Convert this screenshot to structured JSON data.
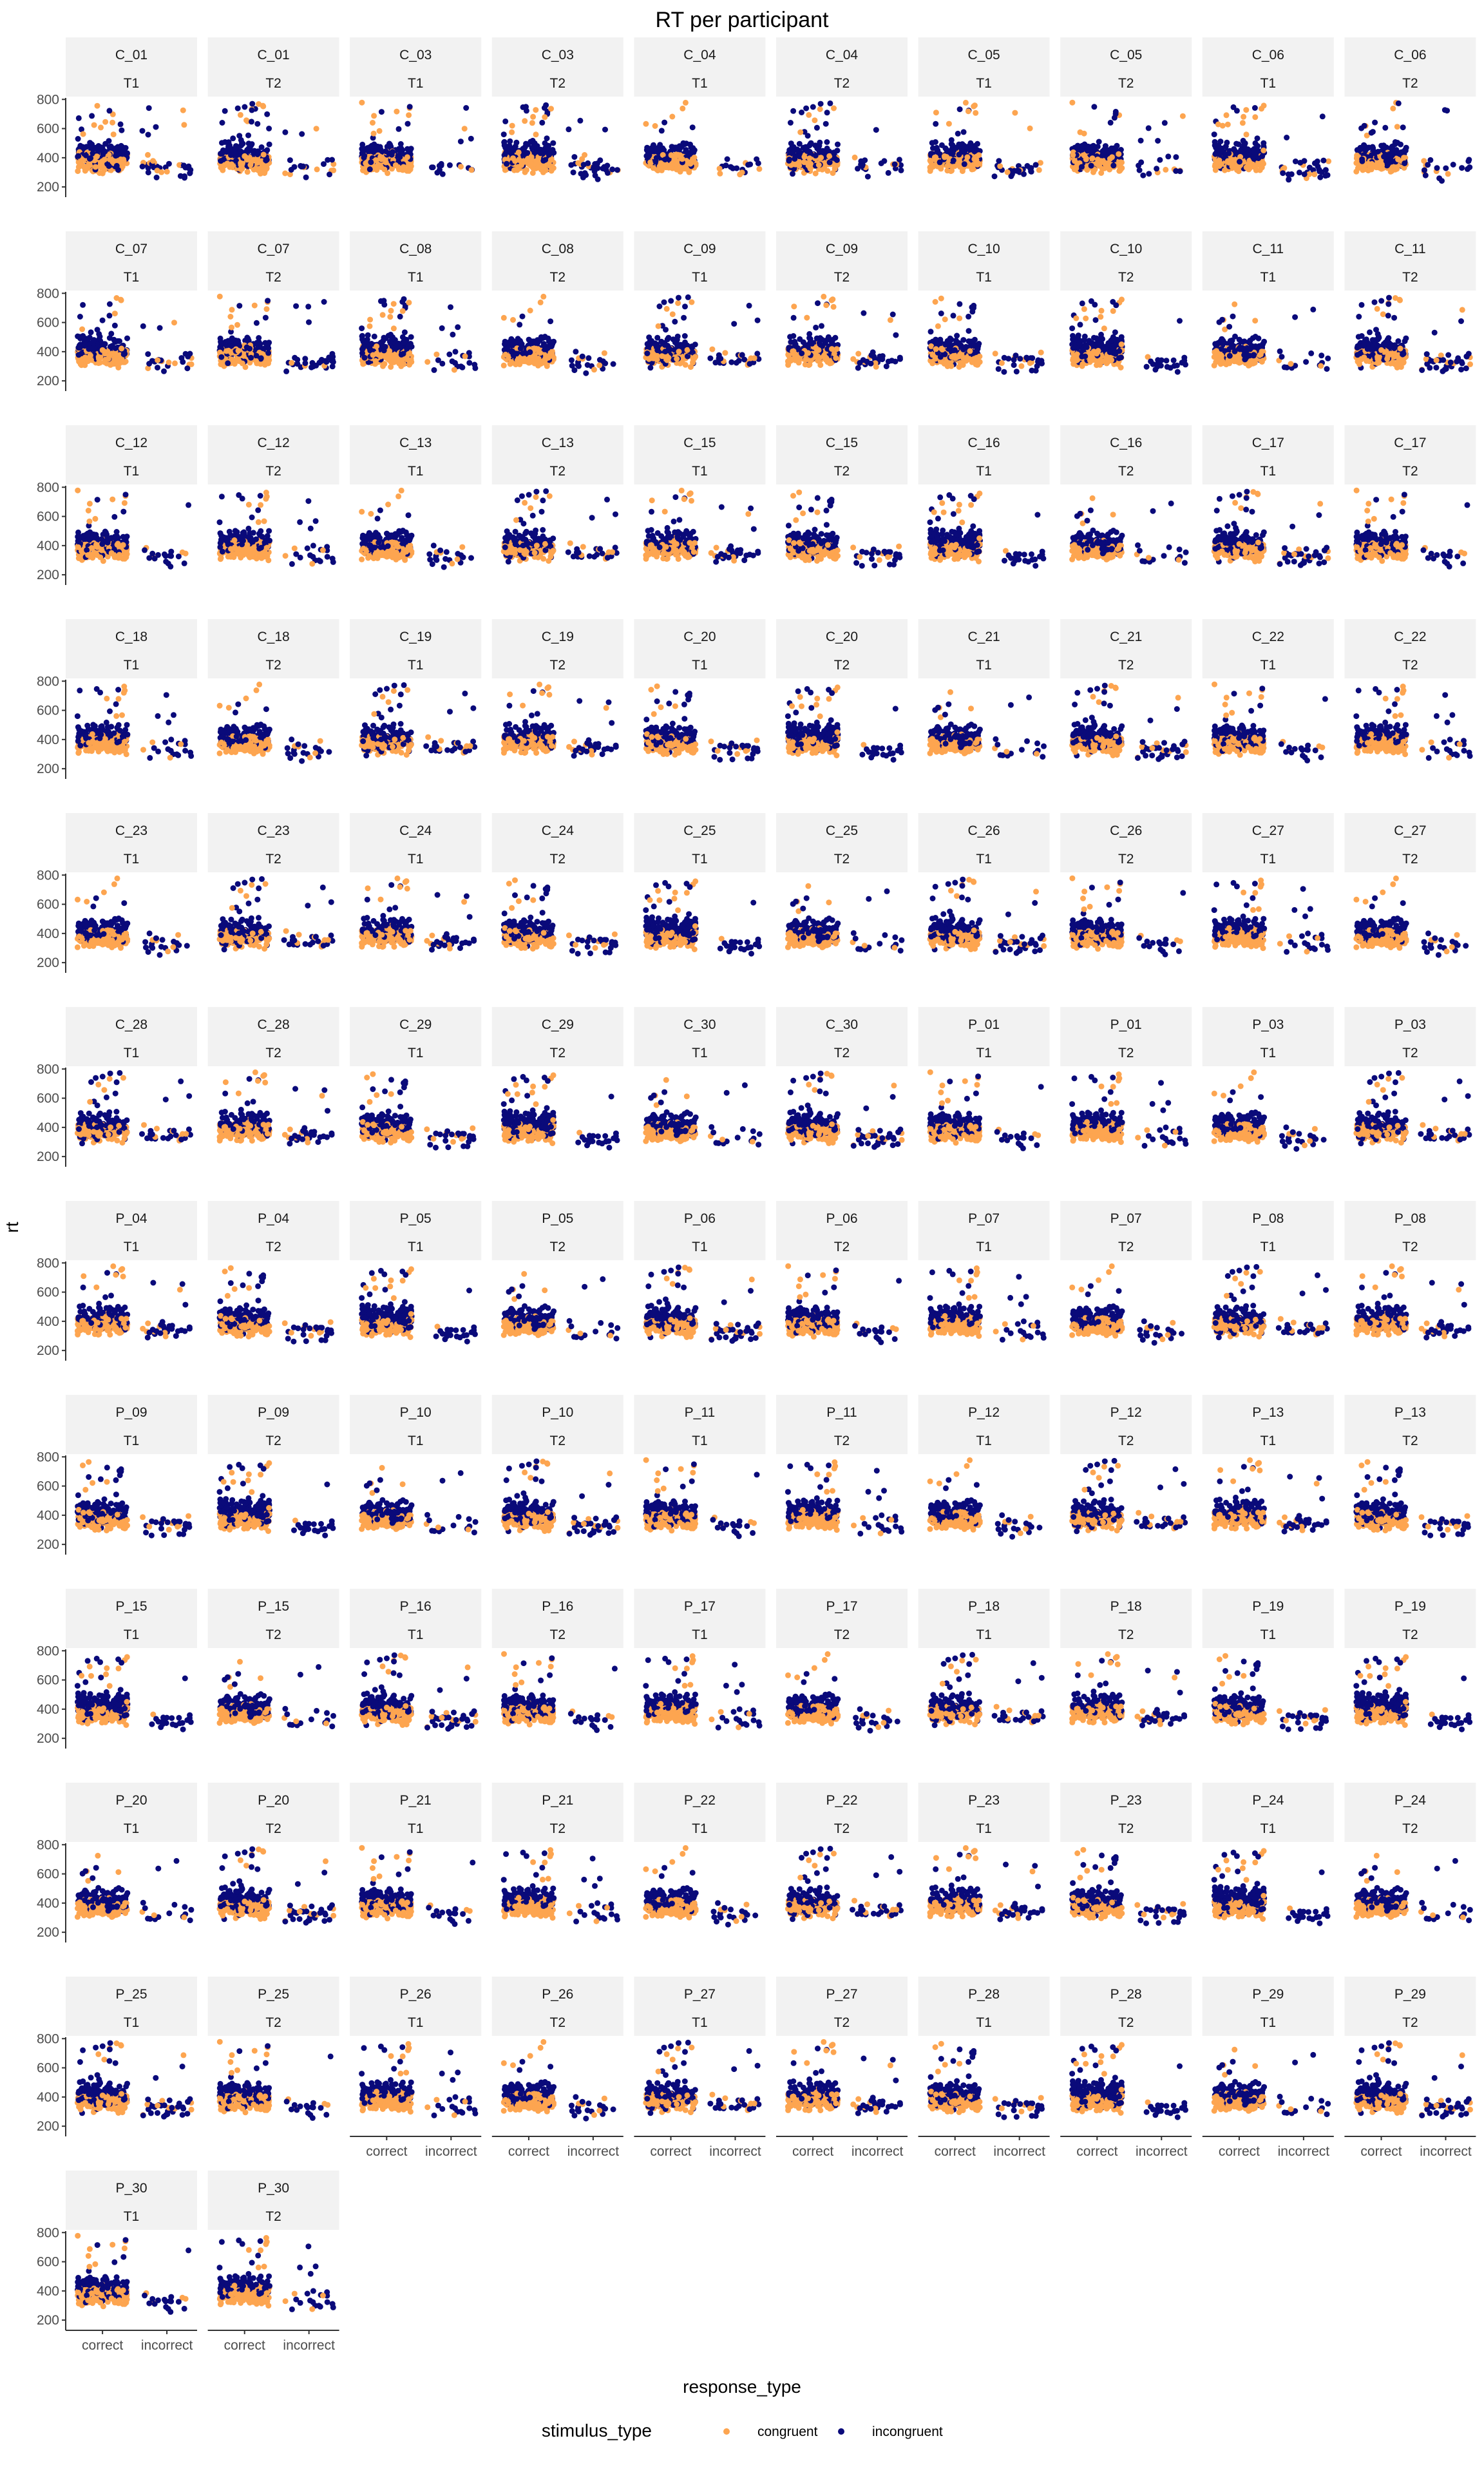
{
  "chart_data": {
    "type": "scatter",
    "title": "RT per participant",
    "xlabel": "response_type",
    "ylabel": "rt",
    "categories": [
      "correct",
      "incorrect"
    ],
    "y_ticks": [
      200,
      400,
      600,
      800
    ],
    "ylim": [
      130,
      810
    ],
    "facet_rows": [
      "T1",
      "T2"
    ],
    "panels": [
      "C_01 T1",
      "C_01 T2",
      "C_03 T1",
      "C_03 T2",
      "C_04 T1",
      "C_04 T2",
      "C_05 T1",
      "C_05 T2",
      "C_06 T1",
      "C_06 T2",
      "C_07 T1",
      "C_07 T2",
      "C_08 T1",
      "C_08 T2",
      "C_09 T1",
      "C_09 T2",
      "C_10 T1",
      "C_10 T2",
      "C_11 T1",
      "C_11 T2",
      "C_12 T1",
      "C_12 T2",
      "C_13 T1",
      "C_13 T2",
      "C_15 T1",
      "C_15 T2",
      "C_16 T1",
      "C_16 T2",
      "C_17 T1",
      "C_17 T2",
      "C_18 T1",
      "C_18 T2",
      "C_19 T1",
      "C_19 T2",
      "C_20 T1",
      "C_20 T2",
      "C_21 T1",
      "C_21 T2",
      "C_22 T1",
      "C_22 T2",
      "C_23 T1",
      "C_23 T2",
      "C_24 T1",
      "C_24 T2",
      "C_25 T1",
      "C_25 T2",
      "C_26 T1",
      "C_26 T2",
      "C_27 T1",
      "C_27 T2",
      "C_28 T1",
      "C_28 T2",
      "C_29 T1",
      "C_29 T2",
      "C_30 T1",
      "C_30 T2",
      "P_01 T1",
      "P_01 T2",
      "P_03 T1",
      "P_03 T2",
      "P_04 T1",
      "P_04 T2",
      "P_05 T1",
      "P_05 T2",
      "P_06 T1",
      "P_06 T2",
      "P_07 T1",
      "P_07 T2",
      "P_08 T1",
      "P_08 T2",
      "P_09 T1",
      "P_09 T2",
      "P_10 T1",
      "P_10 T2",
      "P_11 T1",
      "P_11 T2",
      "P_12 T1",
      "P_12 T2",
      "P_13 T1",
      "P_13 T2",
      "P_15 T1",
      "P_15 T2",
      "P_16 T1",
      "P_16 T2",
      "P_17 T1",
      "P_17 T2",
      "P_18 T1",
      "P_18 T2",
      "P_19 T1",
      "P_19 T2",
      "P_20 T1",
      "P_20 T2",
      "P_21 T1",
      "P_21 T2",
      "P_22 T1",
      "P_22 T2",
      "P_23 T1",
      "P_23 T2",
      "P_24 T1",
      "P_24 T2",
      "P_25 T1",
      "P_25 T2",
      "P_26 T1",
      "P_26 T2",
      "P_27 T1",
      "P_27 T2",
      "P_28 T1",
      "P_28 T2",
      "P_29 T1",
      "P_29 T2",
      "P_30 T1",
      "P_30 T2"
    ],
    "series": [
      {
        "name": "congruent",
        "color": "#FDA550"
      },
      {
        "name": "incongruent",
        "color": "#0A0A7A"
      }
    ],
    "legend": {
      "title": "stimulus_type",
      "position": "bottom"
    },
    "grid": false,
    "typical_points": {
      "correct": {
        "congruent_range": [
          260,
          520
        ],
        "incongruent_range": [
          250,
          700
        ]
      },
      "incorrect": {
        "congruent_range": [
          250,
          500
        ],
        "incongruent_range": [
          220,
          650
        ]
      }
    }
  }
}
